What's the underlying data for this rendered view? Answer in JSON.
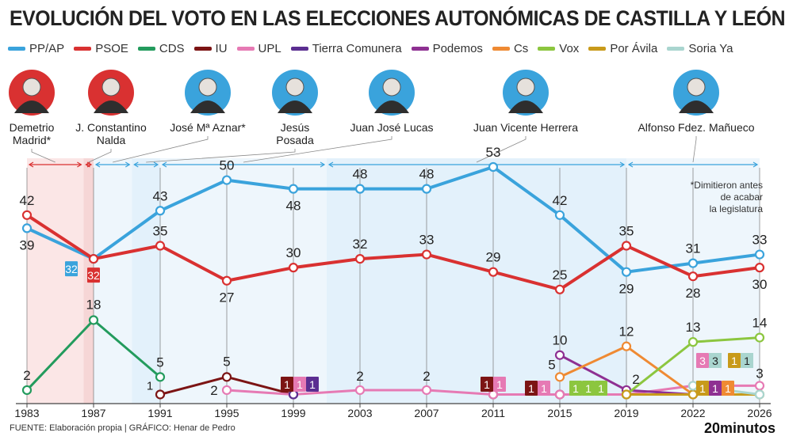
{
  "title": "EVOLUCIÓN DEL VOTO EN LAS ELECCIONES AUTONÓMICAS DE CASTILLA Y LEÓN",
  "footer": "FUENTE: Elaboración propia  |  GRÁFICO: Henar de Pedro",
  "brand": "20minutos",
  "note": [
    "*Dimitieron antes",
    "de acabar",
    "la legislatura"
  ],
  "colors": {
    "pp": "#3aa3dc",
    "psoe": "#d93131",
    "cds": "#239b5d",
    "iu": "#7c1414",
    "upl": "#e67ab4",
    "tc": "#5b2e91",
    "podemos": "#8e3092",
    "cs": "#ef8a33",
    "vox": "#8cc63f",
    "porávila": "#c89a1a",
    "soriaya": "#a9d5cf"
  },
  "presidents": [
    {
      "name": "Demetrio Madrid*",
      "lines": [
        "Demetrio",
        "Madrid*"
      ],
      "party": "psoe",
      "from": 1983,
      "to": 1986.4
    },
    {
      "name": "J. Constantino Nalda",
      "lines": [
        "J. Constantino",
        "Nalda"
      ],
      "party": "psoe",
      "from": 1986.4,
      "to": 1987
    },
    {
      "name": "José Mª Aznar*",
      "lines": [
        "José Mª Aznar*"
      ],
      "party": "pp",
      "from": 1987,
      "to": 1989.3
    },
    {
      "name": "Jesús Posada",
      "lines": [
        "Jesús",
        "Posada"
      ],
      "party": "pp",
      "from": 1989.3,
      "to": 1991
    },
    {
      "name": "Juan José Lucas",
      "lines": [
        "Juan José Lucas"
      ],
      "party": "pp",
      "from": 1991,
      "to": 2001
    },
    {
      "name": "Juan Vicente Herrera",
      "lines": [
        "Juan Vicente Herrera"
      ],
      "party": "pp",
      "from": 2001,
      "to": 2019
    },
    {
      "name": "Alfonso Fdez. Mañueco",
      "lines": [
        "Alfonso Fdez. Mañueco"
      ],
      "party": "pp",
      "from": 2019,
      "to": 2026
    }
  ],
  "chart_data": {
    "type": "line",
    "title": "EVOLUCIÓN DEL VOTO EN LAS ELECCIONES AUTONÓMICAS DE CASTILLA Y LEÓN",
    "x": [
      1983,
      1987,
      1991,
      1995,
      1999,
      2003,
      2007,
      2011,
      2015,
      2019,
      2022,
      2026
    ],
    "x_tick_labels": [
      "1983",
      "1987",
      "1991",
      "1995",
      "1999",
      "2003",
      "2007",
      "2011",
      "2015",
      "2019",
      "2022",
      "2026"
    ],
    "ylim": [
      0,
      56
    ],
    "legend_position": "top",
    "series": [
      {
        "name": "PP/AP",
        "key": "pp",
        "values": [
          39,
          32,
          43,
          50,
          48,
          48,
          48,
          53,
          42,
          29,
          31,
          33
        ]
      },
      {
        "name": "PSOE",
        "key": "psoe",
        "values": [
          42,
          32,
          35,
          27,
          30,
          32,
          33,
          29,
          25,
          35,
          28,
          30
        ]
      },
      {
        "name": "CDS",
        "key": "cds",
        "values": [
          2,
          18,
          5,
          null,
          null,
          null,
          null,
          null,
          null,
          null,
          null,
          null
        ]
      },
      {
        "name": "IU",
        "key": "iu",
        "values": [
          null,
          null,
          1,
          5,
          1,
          null,
          null,
          1,
          1,
          1,
          null,
          null
        ]
      },
      {
        "name": "UPL",
        "key": "upl",
        "values": [
          null,
          null,
          null,
          2,
          1,
          2,
          2,
          1,
          1,
          1,
          3,
          3
        ]
      },
      {
        "name": "Tierra Comunera",
        "key": "tc",
        "values": [
          null,
          null,
          null,
          null,
          1,
          null,
          null,
          null,
          null,
          null,
          null,
          null
        ]
      },
      {
        "name": "Podemos",
        "key": "podemos",
        "values": [
          null,
          null,
          null,
          null,
          null,
          null,
          null,
          null,
          10,
          2,
          1,
          null
        ]
      },
      {
        "name": "Cs",
        "key": "cs",
        "values": [
          null,
          null,
          null,
          null,
          null,
          null,
          null,
          null,
          5,
          12,
          1,
          null
        ]
      },
      {
        "name": "Vox",
        "key": "vox",
        "values": [
          null,
          null,
          null,
          null,
          null,
          null,
          null,
          null,
          null,
          1,
          13,
          14
        ]
      },
      {
        "name": "Por Ávila",
        "key": "porávila",
        "values": [
          null,
          null,
          null,
          null,
          null,
          null,
          null,
          null,
          null,
          1,
          1,
          1
        ]
      },
      {
        "name": "Soria Ya",
        "key": "soriaya",
        "values": [
          null,
          null,
          null,
          null,
          null,
          null,
          null,
          null,
          null,
          null,
          3,
          1
        ]
      }
    ]
  }
}
